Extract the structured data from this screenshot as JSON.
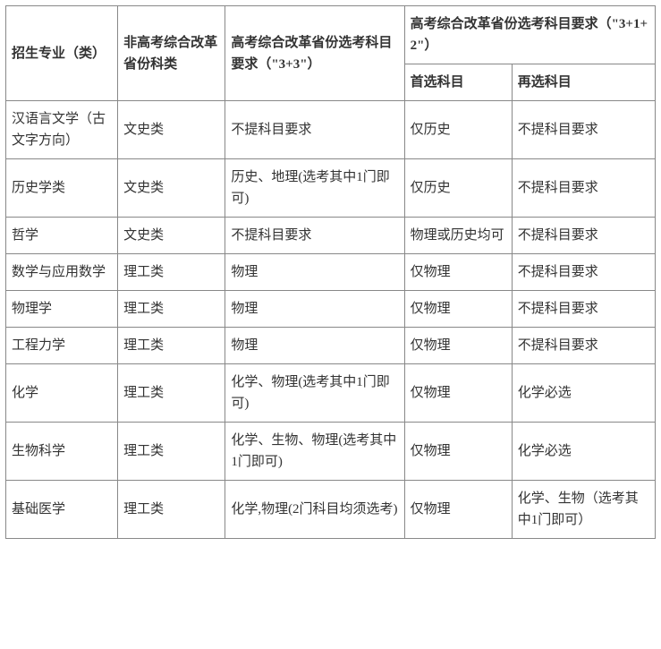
{
  "headers": {
    "col1": "招生专业（类）",
    "col2": "非高考综合改革省份科类",
    "col3": "高考综合改革省份选考科目要求（\"3+3\"）",
    "col4_top": "高考综合改革省份选考科目要求（\"3+1+2\"）",
    "col4_sub1": "首选科目",
    "col4_sub2": "再选科目"
  },
  "rows": [
    {
      "major": "汉语言文学（古文字方向）",
      "category": "文史类",
      "req33": "不提科目要求",
      "req312_first": "仅历史",
      "req312_second": "不提科目要求"
    },
    {
      "major": "历史学类",
      "category": "文史类",
      "req33": "历史、地理(选考其中1门即可)",
      "req312_first": "仅历史",
      "req312_second": "不提科目要求"
    },
    {
      "major": "哲学",
      "category": "文史类",
      "req33": "不提科目要求",
      "req312_first": "物理或历史均可",
      "req312_second": "不提科目要求"
    },
    {
      "major": "数学与应用数学",
      "category": "理工类",
      "req33": "物理",
      "req312_first": "仅物理",
      "req312_second": "不提科目要求"
    },
    {
      "major": "物理学",
      "category": "理工类",
      "req33": "物理",
      "req312_first": "仅物理",
      "req312_second": "不提科目要求"
    },
    {
      "major": "工程力学",
      "category": "理工类",
      "req33": "物理",
      "req312_first": "仅物理",
      "req312_second": "不提科目要求"
    },
    {
      "major": "化学",
      "category": "理工类",
      "req33": "化学、物理(选考其中1门即可)",
      "req312_first": "仅物理",
      "req312_second": "化学必选"
    },
    {
      "major": "生物科学",
      "category": "理工类",
      "req33": "化学、生物、物理(选考其中1门即可)",
      "req312_first": "仅物理",
      "req312_second": "化学必选"
    },
    {
      "major": "基础医学",
      "category": "理工类",
      "req33": "化学,物理(2门科目均须选考)",
      "req312_first": "仅物理",
      "req312_second": "化学、生物（选考其中1门即可）"
    }
  ]
}
